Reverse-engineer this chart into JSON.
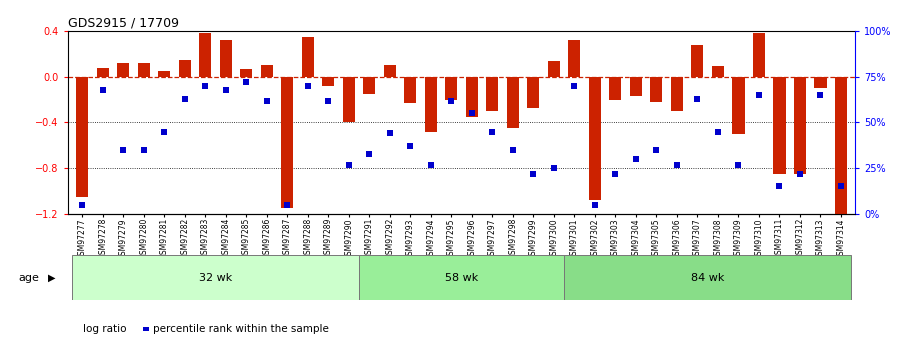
{
  "title": "GDS2915 / 17709",
  "samples": [
    "GSM97277",
    "GSM97278",
    "GSM97279",
    "GSM97280",
    "GSM97281",
    "GSM97282",
    "GSM97283",
    "GSM97284",
    "GSM97285",
    "GSM97286",
    "GSM97287",
    "GSM97288",
    "GSM97289",
    "GSM97290",
    "GSM97291",
    "GSM97292",
    "GSM97293",
    "GSM97294",
    "GSM97295",
    "GSM97296",
    "GSM97297",
    "GSM97298",
    "GSM97299",
    "GSM97300",
    "GSM97301",
    "GSM97302",
    "GSM97303",
    "GSM97304",
    "GSM97305",
    "GSM97306",
    "GSM97307",
    "GSM97308",
    "GSM97309",
    "GSM97310",
    "GSM97311",
    "GSM97312",
    "GSM97313",
    "GSM97314"
  ],
  "log_ratio": [
    -1.05,
    0.08,
    0.12,
    0.12,
    0.05,
    0.15,
    0.38,
    0.32,
    0.07,
    0.1,
    -1.15,
    0.35,
    -0.08,
    -0.4,
    -0.15,
    0.1,
    -0.23,
    -0.48,
    -0.2,
    -0.35,
    -0.3,
    -0.45,
    -0.27,
    0.14,
    0.32,
    -1.08,
    -0.2,
    -0.17,
    -0.22,
    -0.3,
    0.28,
    0.09,
    -0.5,
    0.38,
    -0.85,
    -0.85,
    -0.1,
    -1.2
  ],
  "percentile": [
    5,
    68,
    35,
    35,
    45,
    63,
    70,
    68,
    72,
    62,
    5,
    70,
    62,
    27,
    33,
    44,
    37,
    27,
    62,
    55,
    45,
    35,
    22,
    25,
    70,
    5,
    22,
    30,
    35,
    27,
    63,
    45,
    27,
    65,
    15,
    22,
    65,
    15
  ],
  "groups": [
    {
      "label": "32 wk",
      "start": 0,
      "end": 14,
      "color": "#ccffcc"
    },
    {
      "label": "58 wk",
      "start": 14,
      "end": 24,
      "color": "#99ee99"
    },
    {
      "label": "84 wk",
      "start": 24,
      "end": 38,
      "color": "#88dd88"
    }
  ],
  "bar_color": "#cc2200",
  "dot_color": "#0000cc",
  "ref_line_color": "#cc2200",
  "grid_line_color": "#000000",
  "ylim_left": [
    -1.2,
    0.4
  ],
  "yticks_left": [
    -1.2,
    -0.8,
    -0.4,
    0.0,
    0.4
  ],
  "ylabel_right_ticks": [
    0,
    25,
    50,
    75,
    100
  ],
  "ylabel_right_labels": [
    "0%",
    "25%",
    "50%",
    "75%",
    "100%"
  ],
  "age_label": "age",
  "legend_bar_label": "log ratio",
  "legend_dot_label": "percentile rank within the sample",
  "fig_width": 9.05,
  "fig_height": 3.45
}
